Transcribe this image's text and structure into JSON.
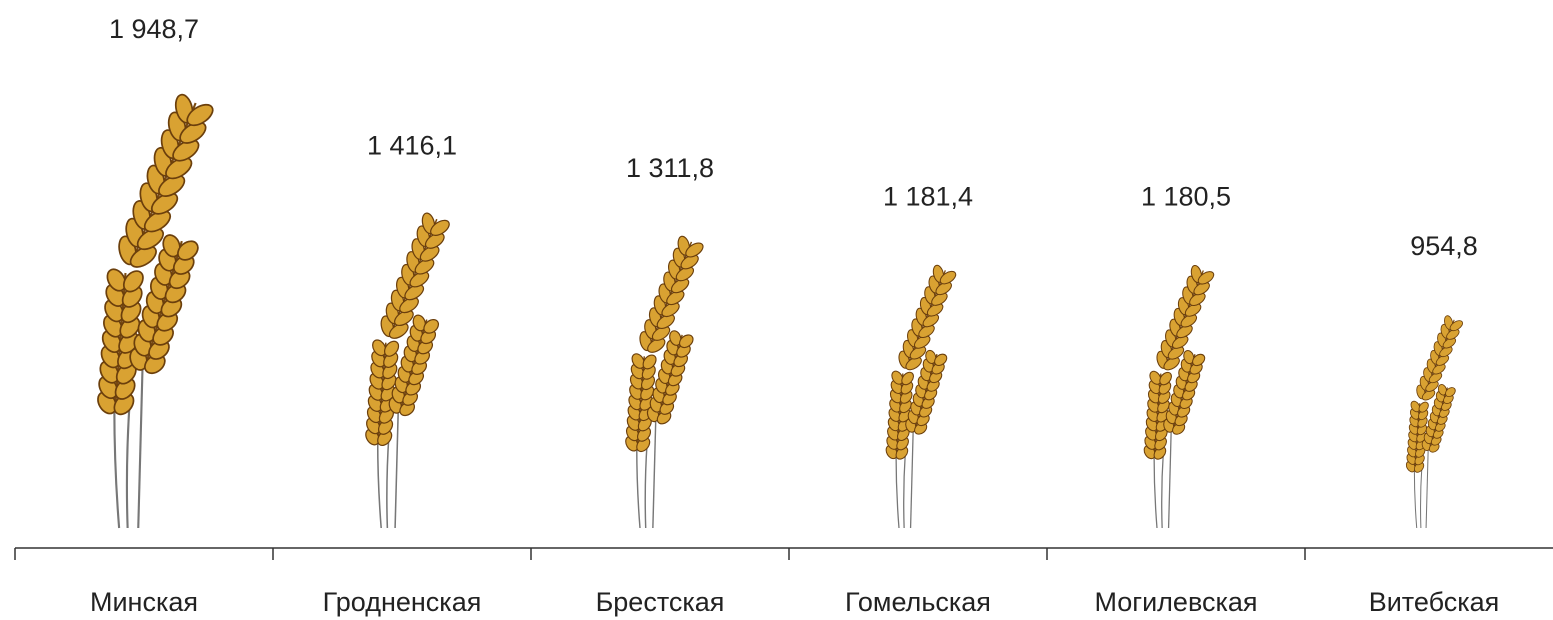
{
  "chart_data": {
    "type": "pictogram",
    "categories": [
      "Минская",
      "Гродненская",
      "Брестская",
      "Гомельская",
      "Могилевская",
      "Витебская"
    ],
    "values": [
      1948.7,
      1416.1,
      1311.8,
      1181.4,
      1180.5,
      954.8
    ],
    "value_labels": [
      "1 948,7",
      "1 416,1",
      "1 311,8",
      "1 181,4",
      "1 180,5",
      "954,8"
    ],
    "color": "#d9a232"
  }
}
